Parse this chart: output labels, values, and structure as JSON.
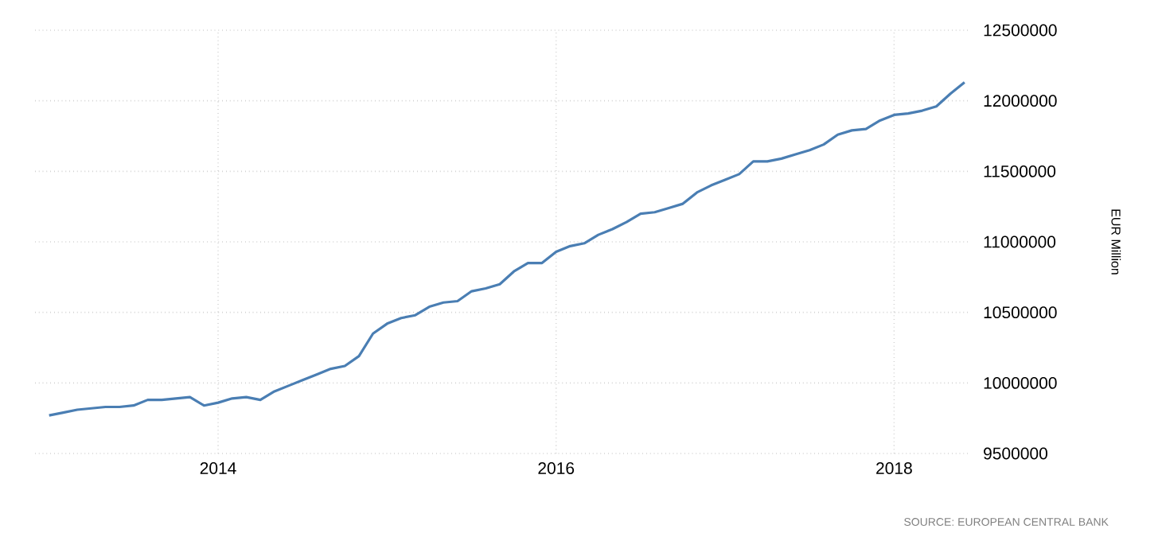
{
  "chart_data": {
    "type": "line",
    "ylabel": "EUR Million",
    "annotations": [
      "SOURCE: EUROPEAN CENTRAL BANK"
    ],
    "x": [
      "2013-01",
      "2013-02",
      "2013-03",
      "2013-04",
      "2013-05",
      "2013-06",
      "2013-07",
      "2013-08",
      "2013-09",
      "2013-10",
      "2013-11",
      "2013-12",
      "2014-01",
      "2014-02",
      "2014-03",
      "2014-04",
      "2014-05",
      "2014-06",
      "2014-07",
      "2014-08",
      "2014-09",
      "2014-10",
      "2014-11",
      "2014-12",
      "2015-01",
      "2015-02",
      "2015-03",
      "2015-04",
      "2015-05",
      "2015-06",
      "2015-07",
      "2015-08",
      "2015-09",
      "2015-10",
      "2015-11",
      "2015-12",
      "2016-01",
      "2016-02",
      "2016-03",
      "2016-04",
      "2016-05",
      "2016-06",
      "2016-07",
      "2016-08",
      "2016-09",
      "2016-10",
      "2016-11",
      "2016-12",
      "2017-01",
      "2017-02",
      "2017-03",
      "2017-04",
      "2017-05",
      "2017-06",
      "2017-07",
      "2017-08",
      "2017-09",
      "2017-10",
      "2017-11",
      "2017-12",
      "2018-01",
      "2018-02",
      "2018-03",
      "2018-04",
      "2018-05",
      "2018-06"
    ],
    "series": [
      {
        "color": "#4a7eb3",
        "values": [
          9770000,
          9790000,
          9810000,
          9820000,
          9830000,
          9830000,
          9840000,
          9880000,
          9880000,
          9890000,
          9900000,
          9840000,
          9860000,
          9890000,
          9900000,
          9880000,
          9940000,
          9980000,
          10020000,
          10060000,
          10100000,
          10120000,
          10190000,
          10350000,
          10420000,
          10460000,
          10480000,
          10540000,
          10570000,
          10580000,
          10650000,
          10670000,
          10700000,
          10790000,
          10850000,
          10850000,
          10930000,
          10970000,
          10990000,
          11050000,
          11090000,
          11140000,
          11200000,
          11210000,
          11240000,
          11270000,
          11350000,
          11400000,
          11440000,
          11480000,
          11570000,
          11570000,
          11590000,
          11620000,
          11650000,
          11690000,
          11760000,
          11790000,
          11800000,
          11860000,
          11900000,
          11910000,
          11930000,
          11960000,
          12050000,
          12130000
        ]
      }
    ],
    "xlim": [
      "2012-12-01",
      "2018-06-15"
    ],
    "xticks": [
      {
        "value": "2014",
        "label": "2014"
      },
      {
        "value": "2016",
        "label": "2016"
      },
      {
        "value": "2018",
        "label": "2018"
      }
    ],
    "ylim": [
      9500000,
      12500000
    ],
    "yticks": [
      9500000,
      10000000,
      10500000,
      11000000,
      11500000,
      12000000,
      12500000
    ],
    "grid": true,
    "marker": "none",
    "line_style": "solid"
  }
}
